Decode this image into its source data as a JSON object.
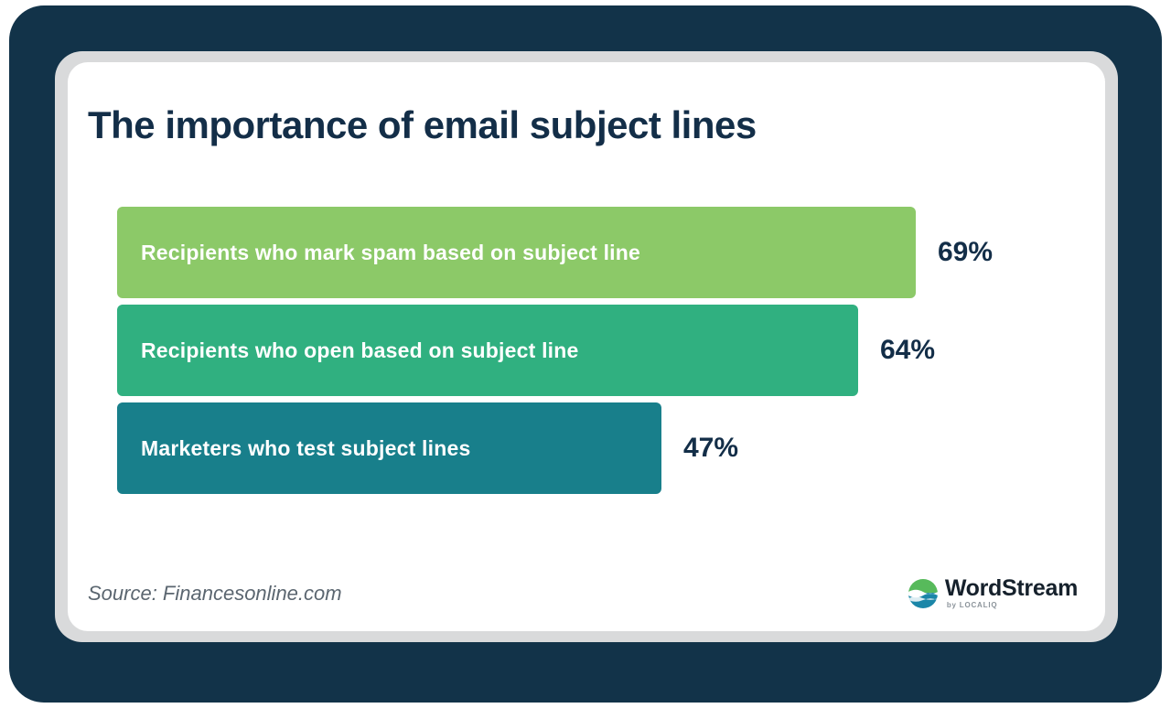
{
  "chart_data": {
    "type": "bar",
    "orientation": "horizontal",
    "title": "The importance of email subject lines",
    "categories": [
      "Recipients who mark spam based on subject line",
      "Recipients who open based on subject line",
      "Marketers who test subject lines"
    ],
    "values": [
      69,
      64,
      47
    ],
    "value_labels": [
      "69%",
      "64%",
      "47%"
    ],
    "bar_colors": [
      "#8CC968",
      "#30B080",
      "#187F8B"
    ],
    "xlim": [
      0,
      100
    ],
    "legend": false,
    "grid": false,
    "source": "Source: Financesonline.com"
  },
  "footer": {
    "brand": "WordStream",
    "brand_sub": "by LOCALIQ"
  },
  "colors": {
    "frame_navy": "#123349",
    "title_navy": "#132E48",
    "bezel_gray": "#D9DADB",
    "card_white": "#FFFFFF",
    "source_gray": "#5B6670"
  }
}
